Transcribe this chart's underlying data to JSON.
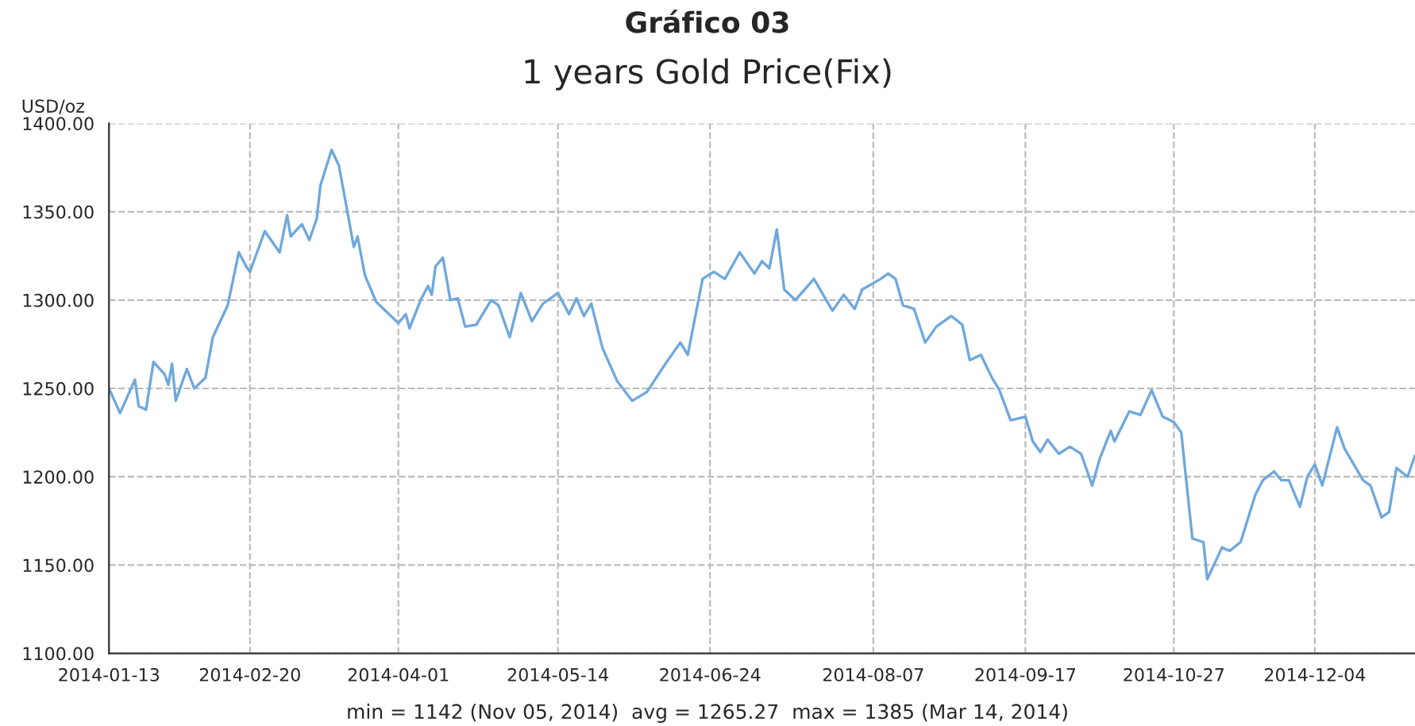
{
  "chart_data": {
    "type": "line",
    "title": "Gráfico 03",
    "subtitle": "1 years Gold Price(Fix)",
    "ylabel": "USD/oz",
    "annotations": [
      "min = 1142 (Nov 05, 2014)  avg = 1265.27  max = 1385 (Mar 14, 2014)"
    ],
    "series": [
      {
        "color": "#6fa8dc",
        "x": [
          "2014-01-13",
          "2014-01-16",
          "2014-01-20",
          "2014-01-21",
          "2014-01-23",
          "2014-01-25",
          "2014-01-28",
          "2014-01-29",
          "2014-01-30",
          "2014-01-31",
          "2014-02-03",
          "2014-02-05",
          "2014-02-08",
          "2014-02-10",
          "2014-02-14",
          "2014-02-17",
          "2014-02-19",
          "2014-02-20",
          "2014-02-24",
          "2014-02-28",
          "2014-03-02",
          "2014-03-03",
          "2014-03-06",
          "2014-03-08",
          "2014-03-10",
          "2014-03-11",
          "2014-03-14",
          "2014-03-16",
          "2014-03-20",
          "2014-03-21",
          "2014-03-23",
          "2014-03-26",
          "2014-04-01",
          "2014-04-03",
          "2014-04-04",
          "2014-04-07",
          "2014-04-09",
          "2014-04-10",
          "2014-04-11",
          "2014-04-13",
          "2014-04-15",
          "2014-04-17",
          "2014-04-19",
          "2014-04-22",
          "2014-04-26",
          "2014-04-28",
          "2014-05-01",
          "2014-05-04",
          "2014-05-07",
          "2014-05-10",
          "2014-05-14",
          "2014-05-17",
          "2014-05-19",
          "2014-05-21",
          "2014-05-23",
          "2014-05-26",
          "2014-05-30",
          "2014-06-03",
          "2014-06-07",
          "2014-06-12",
          "2014-06-16",
          "2014-06-18",
          "2014-06-22",
          "2014-06-25",
          "2014-06-28",
          "2014-07-02",
          "2014-07-06",
          "2014-07-08",
          "2014-07-10",
          "2014-07-12",
          "2014-07-14",
          "2014-07-17",
          "2014-07-22",
          "2014-07-27",
          "2014-07-30",
          "2014-08-02",
          "2014-08-04",
          "2014-08-09",
          "2014-08-11",
          "2014-08-13",
          "2014-08-15",
          "2014-08-18",
          "2014-08-21",
          "2014-08-24",
          "2014-08-28",
          "2014-08-31",
          "2014-09-02",
          "2014-09-05",
          "2014-09-08",
          "2014-09-10",
          "2014-09-13",
          "2014-09-17",
          "2014-09-19",
          "2014-09-21",
          "2014-09-23",
          "2014-09-26",
          "2014-09-29",
          "2014-10-02",
          "2014-10-05",
          "2014-10-07",
          "2014-10-10",
          "2014-10-11",
          "2014-10-15",
          "2014-10-18",
          "2014-10-21",
          "2014-10-24",
          "2014-10-27",
          "2014-10-29",
          "2014-11-01",
          "2014-11-04",
          "2014-11-05",
          "2014-11-09",
          "2014-11-11",
          "2014-11-14",
          "2014-11-18",
          "2014-11-20",
          "2014-11-23",
          "2014-11-25",
          "2014-11-27",
          "2014-11-30",
          "2014-12-02",
          "2014-12-04",
          "2014-12-06",
          "2014-12-10",
          "2014-12-12",
          "2014-12-17",
          "2014-12-19",
          "2014-12-22",
          "2014-12-24",
          "2014-12-26",
          "2014-12-29",
          "2014-12-31"
        ],
        "values": [
          1250,
          1236,
          1255,
          1240,
          1238,
          1265,
          1258,
          1252,
          1264,
          1243,
          1261,
          1250,
          1256,
          1279,
          1297,
          1327,
          1319,
          1316,
          1339,
          1327,
          1348,
          1336,
          1343,
          1334,
          1346,
          1365,
          1385,
          1376,
          1330,
          1336,
          1314,
          1299,
          1287,
          1292,
          1284,
          1300,
          1308,
          1303,
          1319,
          1324,
          1300,
          1301,
          1285,
          1286,
          1300,
          1297,
          1279,
          1304,
          1288,
          1298,
          1304,
          1292,
          1301,
          1291,
          1298,
          1273,
          1254,
          1243,
          1248,
          1264,
          1276,
          1269,
          1312,
          1316,
          1312,
          1327,
          1315,
          1322,
          1318,
          1340,
          1306,
          1300,
          1312,
          1294,
          1303,
          1295,
          1306,
          1312,
          1315,
          1312,
          1297,
          1295,
          1276,
          1285,
          1291,
          1286,
          1266,
          1269,
          1256,
          1249,
          1232,
          1234,
          1220,
          1214,
          1221,
          1213,
          1217,
          1213,
          1195,
          1210,
          1226,
          1220,
          1237,
          1235,
          1249,
          1234,
          1231,
          1225,
          1165,
          1163,
          1142,
          1160,
          1158,
          1163,
          1190,
          1198,
          1203,
          1198,
          1198,
          1183,
          1200,
          1207,
          1195,
          1228,
          1216,
          1198,
          1195,
          1177,
          1180,
          1205,
          1200,
          1212
        ]
      }
    ],
    "xlim": [
      "2014-01-13",
      "2014-12-31"
    ],
    "xticks": [
      "2014-01-13",
      "2014-02-20",
      "2014-04-01",
      "2014-05-14",
      "2014-06-24",
      "2014-08-07",
      "2014-09-17",
      "2014-10-27",
      "2014-12-04"
    ],
    "ylim": [
      1100,
      1400
    ],
    "yticks": [
      {
        "value": 1100,
        "label": "1100.00"
      },
      {
        "value": 1150,
        "label": "1150.00"
      },
      {
        "value": 1200,
        "label": "1200.00"
      },
      {
        "value": 1250,
        "label": "1250.00"
      },
      {
        "value": 1300,
        "label": "1300.00"
      },
      {
        "value": 1350,
        "label": "1350.00"
      },
      {
        "value": 1400,
        "label": "1400.00"
      }
    ],
    "grid": true,
    "legend": false,
    "marker": "none",
    "line_style": "solid"
  }
}
